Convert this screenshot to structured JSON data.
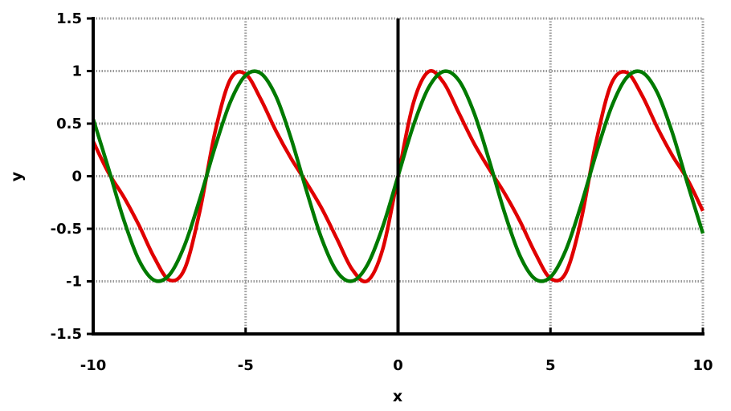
{
  "chart_data": {
    "type": "line",
    "title": "",
    "xlabel": "x",
    "ylabel": "y",
    "xlim": [
      -10,
      10
    ],
    "ylim": [
      -1.5,
      1.5
    ],
    "xticks": [
      "-10",
      "-5",
      "0",
      "5",
      "10"
    ],
    "yticks": [
      "-1.5",
      "-1",
      "-0.5",
      "0",
      "0.5",
      "1",
      "1.5"
    ],
    "grid": true,
    "x": [
      -10,
      -9.5,
      -9,
      -8.5,
      -8,
      -7.5,
      -7,
      -6.5,
      -6,
      -5.5,
      -5,
      -4.5,
      -4,
      -3.5,
      -3,
      -2.5,
      -2,
      -1.5,
      -1,
      -0.5,
      0,
      0.5,
      1,
      1.5,
      2,
      2.5,
      3,
      3.5,
      4,
      4.5,
      5,
      5.5,
      6,
      6.5,
      7,
      7.5,
      8,
      8.5,
      9,
      9.5,
      10
    ],
    "series": [
      {
        "color": "#e00000",
        "values": [
          0.33,
          0.034,
          -0.196,
          -0.466,
          -0.771,
          -0.987,
          -0.881,
          -0.329,
          0.423,
          0.921,
          0.971,
          0.731,
          0.428,
          0.165,
          -0.064,
          -0.308,
          -0.598,
          -0.888,
          -0.994,
          -0.692,
          0,
          0.692,
          0.994,
          0.888,
          0.598,
          0.308,
          0.064,
          -0.165,
          -0.428,
          -0.731,
          -0.971,
          -0.921,
          -0.423,
          0.329,
          0.881,
          0.987,
          0.771,
          0.466,
          0.196,
          -0.034,
          -0.33
        ]
      },
      {
        "color": "#007a00",
        "values": [
          0.544,
          0.075,
          -0.412,
          -0.798,
          -0.989,
          -0.938,
          -0.657,
          -0.215,
          0.279,
          0.706,
          0.959,
          0.978,
          0.757,
          0.351,
          -0.141,
          -0.598,
          -0.909,
          -0.997,
          -0.841,
          -0.479,
          0,
          0.479,
          0.841,
          0.997,
          0.909,
          0.598,
          0.141,
          -0.351,
          -0.757,
          -0.978,
          -0.959,
          -0.706,
          -0.279,
          0.215,
          0.657,
          0.938,
          0.989,
          0.798,
          0.412,
          -0.075,
          -0.544
        ]
      }
    ]
  }
}
